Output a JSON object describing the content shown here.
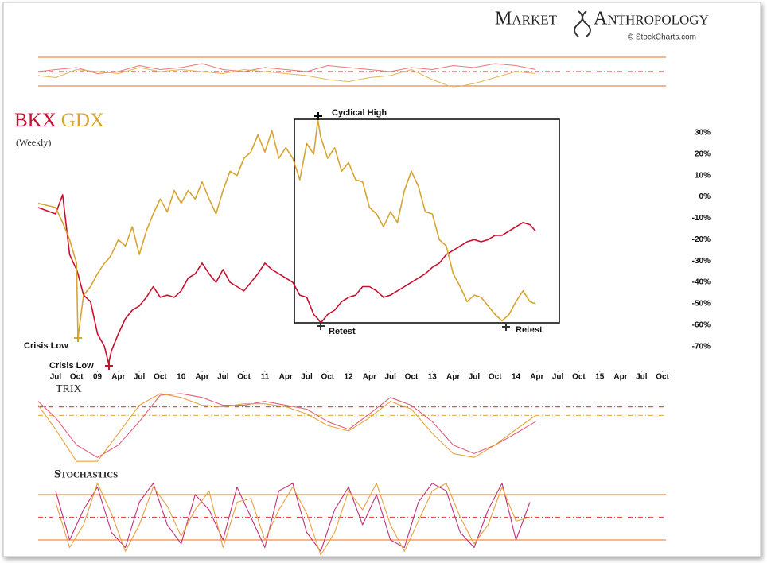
{
  "header": {
    "brand_left": "Market",
    "brand_right": "Anthropology",
    "credit": "© StockCharts.com"
  },
  "chart_data": [
    {
      "type": "line",
      "x": [
        -2.5,
        0,
        3,
        6,
        9,
        12,
        15,
        18,
        21,
        24,
        27,
        30,
        33,
        36,
        39,
        42,
        45,
        48,
        51,
        54,
        57,
        60,
        63,
        66,
        68.8
      ],
      "series": [
        {
          "color": "#e8787a",
          "values": [
            50,
            55,
            60,
            45,
            50,
            65,
            55,
            60,
            70,
            55,
            50,
            60,
            55,
            50,
            65,
            60,
            55,
            50,
            60,
            55,
            65,
            60,
            70,
            65,
            55
          ]
        },
        {
          "color": "#e3b657",
          "values": [
            40,
            35,
            55,
            50,
            45,
            60,
            50,
            55,
            50,
            45,
            55,
            50,
            45,
            40,
            30,
            25,
            35,
            40,
            55,
            30,
            10,
            20,
            35,
            50,
            45
          ]
        }
      ],
      "ylim": [
        0,
        100
      ],
      "hlines": [
        86,
        50,
        14
      ]
    },
    {
      "type": "line",
      "subtitle": "(Weekly)",
      "x": [
        -2.5,
        0,
        1,
        2,
        3,
        3.2,
        4,
        5,
        6,
        7,
        7.6,
        8,
        9,
        10,
        11,
        12,
        13,
        14,
        15,
        16,
        17,
        18,
        19,
        20,
        21,
        22,
        23,
        24,
        25,
        26,
        27,
        28,
        29,
        30,
        31,
        32,
        33,
        34,
        35,
        36,
        37,
        37.6,
        38,
        39,
        40,
        41,
        42,
        43,
        44,
        45,
        46,
        47,
        48,
        49,
        50,
        51,
        52,
        53,
        54,
        55,
        56,
        57,
        58,
        59,
        60,
        61,
        62,
        63,
        64,
        65,
        66,
        67,
        68,
        68.8
      ],
      "series": [
        {
          "name": "BKX",
          "color": "#c8102e",
          "values": [
            -5,
            -8,
            1,
            -27,
            -34,
            -36,
            -46,
            -49,
            -64,
            -70,
            -78,
            -72,
            -64,
            -57,
            -53,
            -51,
            -47,
            -42,
            -47,
            -46,
            -47,
            -44,
            -38,
            -36,
            -31,
            -36,
            -40,
            -34,
            -40,
            -42,
            -44,
            -40,
            -36,
            -31,
            -34,
            -36,
            -38,
            -40,
            -46,
            -47,
            -55,
            -57,
            -59,
            -55,
            -53,
            -49,
            -47,
            -46,
            -42,
            -42,
            -44,
            -47,
            -46,
            -44,
            -42,
            -40,
            -38,
            -36,
            -33,
            -31,
            -27,
            -25,
            -23,
            -21,
            -20,
            -21,
            -20,
            -18,
            -18,
            -16,
            -14,
            -12,
            -13,
            -16
          ]
        },
        {
          "name": "GDX",
          "color": "#d6a431",
          "values": [
            -3,
            -5,
            -12,
            -20,
            -31,
            -66,
            -46,
            -42,
            -36,
            -31,
            -29,
            -27,
            -20,
            -23,
            -14,
            -27,
            -16,
            -8,
            -1,
            -7,
            3,
            -3,
            3,
            -1,
            7,
            -1,
            -8,
            3,
            12,
            10,
            18,
            21,
            29,
            21,
            31,
            18,
            23,
            18,
            8,
            25,
            20,
            36,
            28,
            18,
            23,
            12,
            16,
            8,
            7,
            -5,
            -8,
            -14,
            -7,
            -12,
            3,
            12,
            5,
            -7,
            -8,
            -20,
            -23,
            -36,
            -42,
            -49,
            -46,
            -47,
            -51,
            -55,
            -58,
            -55,
            -49,
            -44,
            -49,
            -50
          ]
        }
      ],
      "annotations": [
        "Cyclical High",
        "Crisis Low",
        "Crisis Low",
        "Retest",
        "Retest"
      ],
      "xlim": [
        -2.5,
        87.5
      ],
      "xticks": [
        {
          "value": 0,
          "label": "Jul"
        },
        {
          "value": 3,
          "label": "Oct"
        },
        {
          "value": 6,
          "label": "09"
        },
        {
          "value": 9,
          "label": "Apr"
        },
        {
          "value": 12,
          "label": "Jul"
        },
        {
          "value": 15,
          "label": "Oct"
        },
        {
          "value": 18,
          "label": "10"
        },
        {
          "value": 21,
          "label": "Apr"
        },
        {
          "value": 24,
          "label": "Jul"
        },
        {
          "value": 27,
          "label": "Oct"
        },
        {
          "value": 30,
          "label": "11"
        },
        {
          "value": 33,
          "label": "Apr"
        },
        {
          "value": 36,
          "label": "Jul"
        },
        {
          "value": 39,
          "label": "Oct"
        },
        {
          "value": 42,
          "label": "12"
        },
        {
          "value": 45,
          "label": "Apr"
        },
        {
          "value": 48,
          "label": "Jul"
        },
        {
          "value": 51,
          "label": "Oct"
        },
        {
          "value": 54,
          "label": "13"
        },
        {
          "value": 57,
          "label": "Apr"
        },
        {
          "value": 60,
          "label": "Jul"
        },
        {
          "value": 63,
          "label": "Oct"
        },
        {
          "value": 66,
          "label": "14"
        },
        {
          "value": 69,
          "label": "Apr"
        },
        {
          "value": 72,
          "label": "Jul"
        },
        {
          "value": 75,
          "label": "Oct"
        },
        {
          "value": 78,
          "label": "15"
        },
        {
          "value": 81,
          "label": "Apr"
        },
        {
          "value": 84,
          "label": "Jul"
        },
        {
          "value": 87,
          "label": "Oct"
        }
      ],
      "ylim": [
        -82,
        40
      ],
      "yticks": [
        {
          "value": 30,
          "label": "30%"
        },
        {
          "value": 20,
          "label": "20%"
        },
        {
          "value": 10,
          "label": "10%"
        },
        {
          "value": 0,
          "label": "0%"
        },
        {
          "value": -10,
          "label": "-10%"
        },
        {
          "value": -20,
          "label": "-20%"
        },
        {
          "value": -30,
          "label": "-30%"
        },
        {
          "value": -40,
          "label": "-40%"
        },
        {
          "value": -50,
          "label": "-50%"
        },
        {
          "value": -60,
          "label": "-60%"
        },
        {
          "value": -70,
          "label": "-70%"
        }
      ]
    },
    {
      "type": "line",
      "title": "TRIX",
      "x": [
        -2.5,
        0,
        3,
        6,
        9,
        12,
        15,
        18,
        21,
        24,
        27,
        30,
        33,
        36,
        39,
        42,
        45,
        48,
        51,
        54,
        57,
        60,
        63,
        66,
        68.8
      ],
      "series": [
        {
          "color": "#e0607a",
          "values": [
            87,
            66,
            31,
            15,
            31,
            61,
            95,
            97,
            92,
            82,
            82,
            87,
            82,
            77,
            61,
            51,
            71,
            92,
            82,
            61,
            31,
            20,
            31,
            46,
            61
          ]
        },
        {
          "color": "#e3a63a",
          "values": [
            82,
            51,
            10,
            10,
            46,
            82,
            97,
            92,
            82,
            80,
            84,
            84,
            80,
            71,
            56,
            49,
            66,
            87,
            77,
            46,
            20,
            15,
            31,
            51,
            69
          ]
        }
      ],
      "ylim": [
        0,
        100
      ],
      "hlines": [
        80,
        69
      ]
    },
    {
      "type": "line",
      "title": "Stochastics",
      "x": [
        0,
        2,
        4,
        6,
        8,
        10,
        12,
        14,
        16,
        18,
        20,
        22,
        24,
        26,
        28,
        30,
        32,
        34,
        36,
        38,
        40,
        42,
        44,
        46,
        48,
        50,
        52,
        54,
        56,
        58,
        60,
        62,
        64,
        66,
        68
      ],
      "series": [
        {
          "color": "#c0307a",
          "values": [
            85,
            20,
            60,
            90,
            30,
            10,
            70,
            95,
            40,
            15,
            80,
            60,
            20,
            90,
            50,
            10,
            85,
            95,
            30,
            5,
            60,
            90,
            40,
            80,
            20,
            10,
            70,
            95,
            85,
            30,
            10,
            60,
            95,
            20,
            70
          ]
        },
        {
          "color": "#e8a040",
          "values": [
            70,
            10,
            40,
            95,
            55,
            5,
            40,
            90,
            65,
            25,
            60,
            85,
            10,
            70,
            75,
            20,
            60,
            90,
            55,
            0,
            30,
            85,
            60,
            95,
            40,
            5,
            45,
            85,
            95,
            50,
            15,
            40,
            90,
            45,
            50
          ]
        }
      ],
      "ylim": [
        0,
        100
      ],
      "hlines": [
        80,
        50,
        20
      ]
    }
  ]
}
